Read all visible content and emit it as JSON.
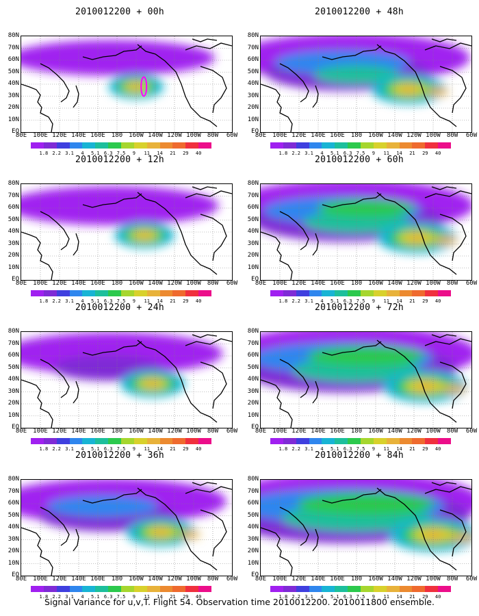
{
  "caption": "Signal Variance for u,v,T. Flight 54. Observation time 2010012200. 2010011800 ensemble.",
  "colors": {
    "scale": [
      "#a020f0",
      "#7f2bd6",
      "#3f3fdf",
      "#2f86ee",
      "#18b4d4",
      "#1dbf9c",
      "#2cc94d",
      "#a6d62e",
      "#d8d12c",
      "#e8b23a",
      "#ec8a30",
      "#ef6a2e",
      "#f0303e",
      "#ec0e8a"
    ],
    "land_outline": "#000000",
    "grid": "#808080",
    "observation_marker": "#ff00ff"
  },
  "chart_data": {
    "type": "heatmap",
    "colorbar_ticks": [
      "1.8",
      "2.2",
      "3.1",
      "4",
      "5.1",
      "6.3",
      "7.5",
      "9",
      "11",
      "14",
      "21",
      "29",
      "40"
    ],
    "x_tick_labels": [
      "80E",
      "100E",
      "120E",
      "140E",
      "160E",
      "180",
      "160W",
      "140W",
      "120W",
      "100W",
      "80W",
      "60W"
    ],
    "y_tick_labels": [
      "EQ",
      "10N",
      "20N",
      "30N",
      "40N",
      "50N",
      "60N",
      "70N",
      "80N"
    ],
    "panels": [
      {
        "title": "2010012200 + 00h",
        "lead_hours": 0
      },
      {
        "title": "2010012200 + 48h",
        "lead_hours": 48
      },
      {
        "title": "2010012200 + 12h",
        "lead_hours": 12
      },
      {
        "title": "2010012200 + 60h",
        "lead_hours": 60
      },
      {
        "title": "2010012200 + 24h",
        "lead_hours": 24
      },
      {
        "title": "2010012200 + 72h",
        "lead_hours": 72
      },
      {
        "title": "2010012200 + 36h",
        "lead_hours": 36
      },
      {
        "title": "2010012200 + 84h",
        "lead_hours": 84
      }
    ]
  }
}
